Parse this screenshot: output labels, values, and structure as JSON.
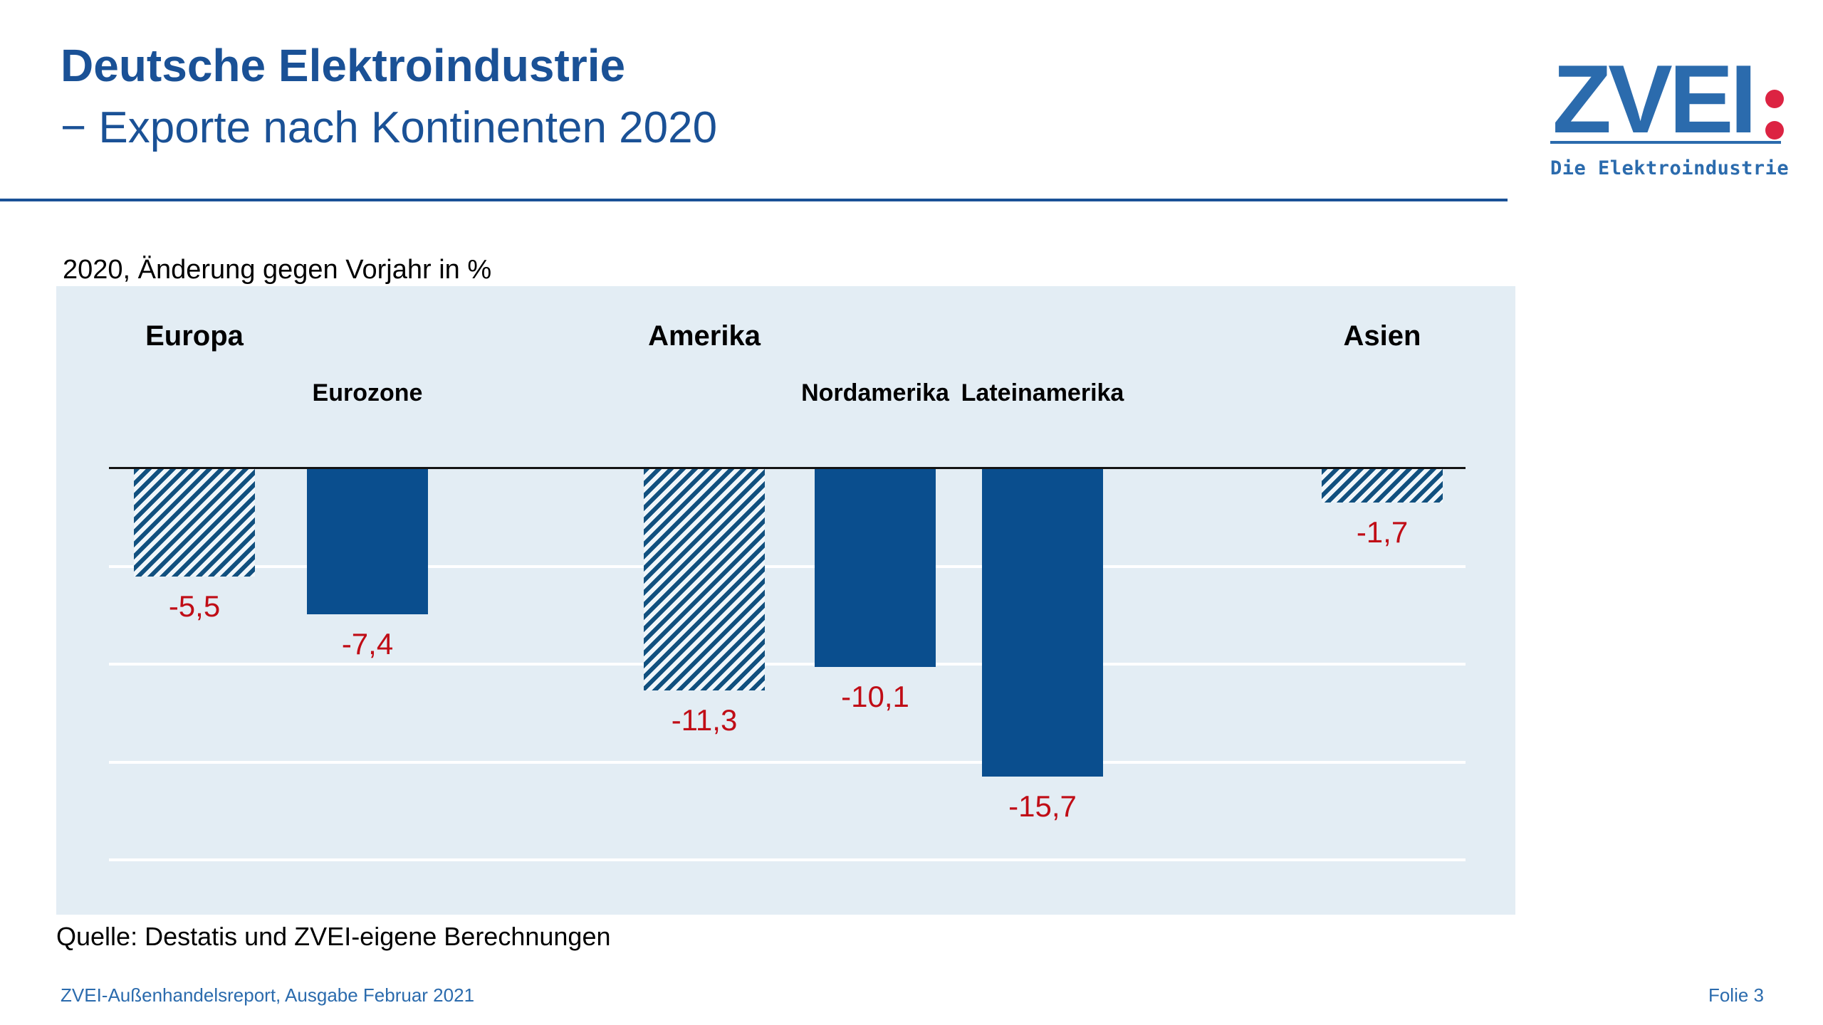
{
  "slide": {
    "title_line1": "Deutsche Elektroindustrie",
    "title_line2": "− Exporte nach Kontinenten 2020",
    "subtitle": "2020, Änderung gegen Vorjahr in %",
    "source": "Quelle: Destatis und ZVEI-eigene Berechnungen",
    "footer_left": "ZVEI-Außenhandelsreport, Ausgabe Februar 2021",
    "footer_right": "Folie 3"
  },
  "logo": {
    "text": "ZVEI",
    "tagline": "Die Elektroindustrie"
  },
  "colors": {
    "title_blue": "#1a5196",
    "logo_blue": "#2b6bad",
    "logo_red": "#dc2342",
    "bar_blue": "#0a4e8e",
    "hatch_blue": "#11507f",
    "hatch_bg": "#f0f6fa",
    "value_red": "#c00d16",
    "chart_bg": "#e3edf4",
    "gridline_white": "#ffffff"
  },
  "chart_data": {
    "type": "bar",
    "title": "2020, Änderung gegen Vorjahr in %",
    "unit": "%",
    "categories": [
      "Europa",
      "Eurozone",
      "Amerika",
      "Nordamerika",
      "Lateinamerika",
      "Asien"
    ],
    "values": [
      -5.5,
      -7.4,
      -11.3,
      -10.1,
      -15.7,
      -1.7
    ],
    "value_labels": [
      "-5,5",
      "-7,4",
      "-11,3",
      "-10,1",
      "-15,7",
      "-1,7"
    ],
    "bar_styles": [
      "hatched",
      "solid",
      "hatched",
      "solid",
      "solid",
      "hatched"
    ],
    "label_tier": [
      "group",
      "sub",
      "group",
      "sub",
      "sub",
      "group"
    ],
    "groups": {
      "Europa": [
        "Europa",
        "Eurozone"
      ],
      "Amerika": [
        "Amerika",
        "Nordamerika",
        "Lateinamerika"
      ],
      "Asien": [
        "Asien"
      ]
    },
    "ylim": [
      -20,
      0
    ],
    "baseline": 0,
    "gridline_step": 5,
    "grid": true,
    "legend": "none",
    "xlabel": "",
    "ylabel": ""
  }
}
